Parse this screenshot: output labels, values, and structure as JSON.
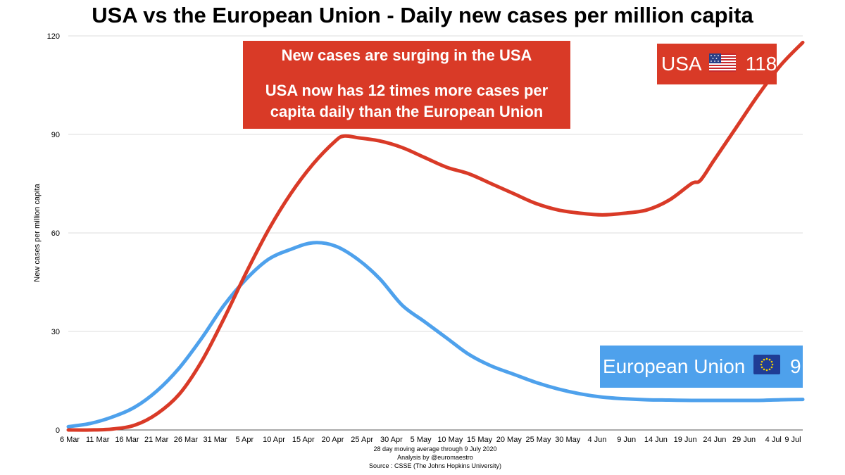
{
  "title": "USA vs the European Union - Daily new cases per million capita",
  "callout": {
    "line1": "New cases are surging in the USA",
    "line2": "USA now has 12 times more cases per",
    "line3": "capita daily than the European Union"
  },
  "usa_label": {
    "name": "USA",
    "value": "118",
    "flag": "us-flag-icon"
  },
  "eu_label": {
    "name": "European Union",
    "value": "9",
    "flag": "eu-flag-icon"
  },
  "footnotes": [
    "28 day moving average through 9 July 2020",
    "Analysis by @euromaestro",
    "Source : CSSE (The Johns Hopkins University)"
  ],
  "colors": {
    "usa": "#d93a27",
    "eu": "#4ea1ec",
    "grid": "#dddddd"
  },
  "chart_data": {
    "type": "line",
    "title": "USA vs the European Union - Daily new cases per million capita",
    "xlabel": "",
    "ylabel": "New cases per million capita",
    "ylim": [
      0,
      120
    ],
    "yticks": [
      0,
      30,
      60,
      90,
      120
    ],
    "x_tick_labels": [
      "6 Mar",
      "11 Mar",
      "16 Mar",
      "21 Mar",
      "26 Mar",
      "31 Mar",
      "5 Apr",
      "10 Apr",
      "15 Apr",
      "20 Apr",
      "25 Apr",
      "30 Apr",
      "5 May",
      "10 May",
      "15 May",
      "20 May",
      "25 May",
      "30 May",
      "4 Jun",
      "9 Jun",
      "14 Jun",
      "19 Jun",
      "24 Jun",
      "29 Jun",
      "4 Jul",
      "9 Jul"
    ],
    "x_range_days": [
      0,
      125
    ],
    "series": [
      {
        "name": "USA",
        "color": "#d93a27",
        "final_value": 118,
        "points": [
          [
            0,
            0
          ],
          [
            5,
            0
          ],
          [
            10,
            0.3
          ],
          [
            15,
            1.5
          ],
          [
            20,
            5
          ],
          [
            25,
            11
          ],
          [
            30,
            21
          ],
          [
            35,
            34
          ],
          [
            40,
            48
          ],
          [
            45,
            61
          ],
          [
            50,
            72
          ],
          [
            55,
            81
          ],
          [
            60,
            88
          ],
          [
            62,
            89.5
          ],
          [
            65,
            89
          ],
          [
            70,
            88
          ],
          [
            75,
            86
          ],
          [
            80,
            83
          ],
          [
            85,
            80
          ],
          [
            90,
            78
          ],
          [
            95,
            75
          ],
          [
            100,
            72
          ],
          [
            105,
            69
          ],
          [
            110,
            67
          ],
          [
            115,
            66
          ],
          [
            120,
            65.5
          ],
          [
            125,
            66
          ],
          [
            130,
            67
          ],
          [
            135,
            70
          ],
          [
            140,
            75
          ],
          [
            142,
            76
          ],
          [
            145,
            82
          ],
          [
            150,
            92
          ],
          [
            155,
            102
          ],
          [
            160,
            111
          ],
          [
            165,
            118
          ]
        ]
      },
      {
        "name": "European Union",
        "color": "#4ea1ec",
        "final_value": 9,
        "points": [
          [
            0,
            1
          ],
          [
            5,
            2
          ],
          [
            10,
            4
          ],
          [
            15,
            7
          ],
          [
            20,
            12
          ],
          [
            25,
            19
          ],
          [
            30,
            28
          ],
          [
            35,
            38
          ],
          [
            40,
            46
          ],
          [
            45,
            52
          ],
          [
            50,
            55
          ],
          [
            55,
            57
          ],
          [
            60,
            56
          ],
          [
            65,
            52
          ],
          [
            70,
            46
          ],
          [
            75,
            38
          ],
          [
            80,
            33
          ],
          [
            85,
            28
          ],
          [
            90,
            23
          ],
          [
            95,
            19.5
          ],
          [
            100,
            17
          ],
          [
            105,
            14.5
          ],
          [
            110,
            12.5
          ],
          [
            115,
            11
          ],
          [
            120,
            10
          ],
          [
            125,
            9.5
          ],
          [
            130,
            9.2
          ],
          [
            135,
            9.1
          ],
          [
            140,
            9
          ],
          [
            145,
            9
          ],
          [
            150,
            9
          ],
          [
            155,
            9
          ],
          [
            160,
            9.2
          ],
          [
            165,
            9.3
          ]
        ]
      }
    ]
  }
}
